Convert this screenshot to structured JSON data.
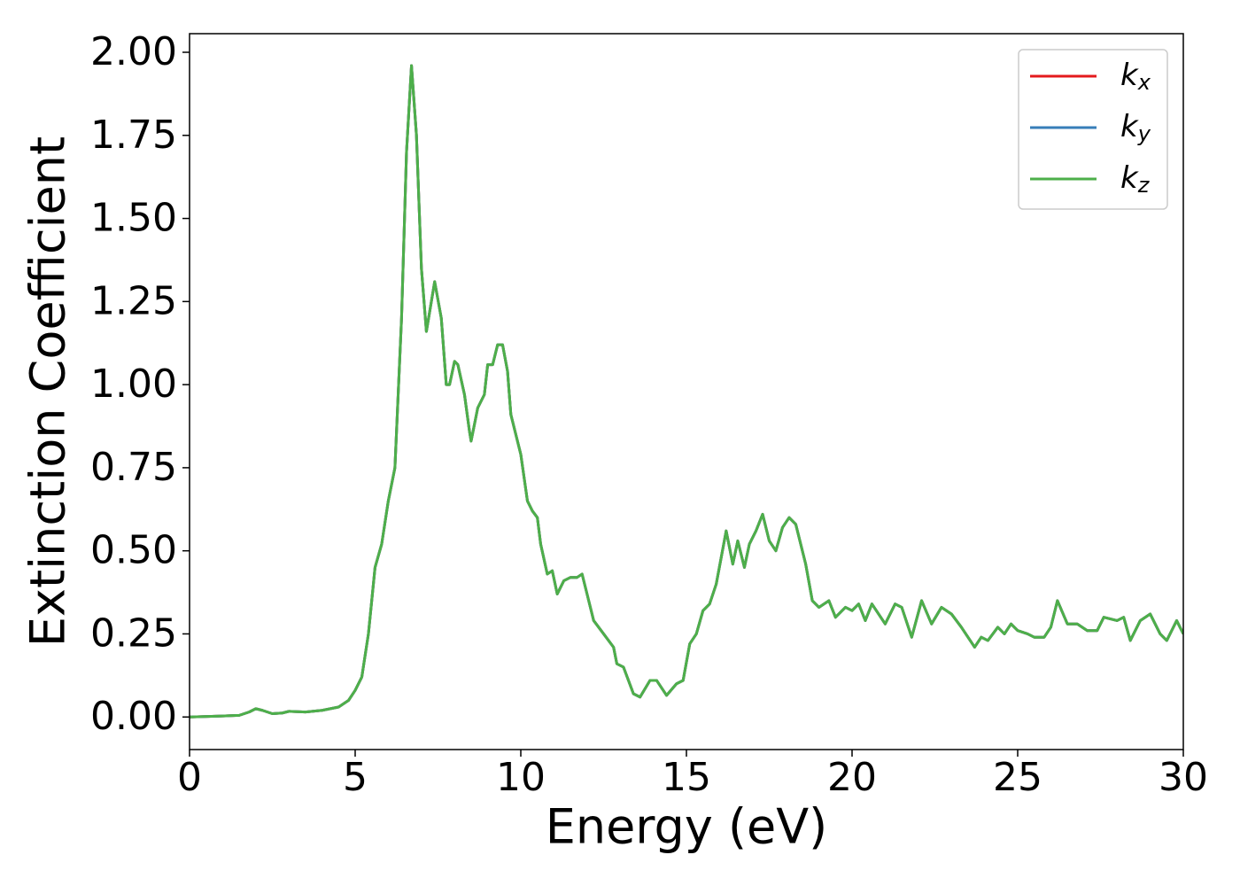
{
  "chart_data": {
    "type": "line",
    "xlabel": "Energy (eV)",
    "ylabel": "Extinction Coefficient",
    "xlim": [
      0,
      30
    ],
    "ylim": [
      -0.098,
      2.056
    ],
    "xticks": [
      0,
      5,
      10,
      15,
      20,
      25,
      30
    ],
    "yticks": [
      {
        "value": 0,
        "label": "0.00"
      },
      {
        "value": 0.25,
        "label": "0.25"
      },
      {
        "value": 0.5,
        "label": "0.50"
      },
      {
        "value": 0.75,
        "label": "0.75"
      },
      {
        "value": 1,
        "label": "1.00"
      },
      {
        "value": 1.25,
        "label": "1.25"
      },
      {
        "value": 1.5,
        "label": "1.50"
      },
      {
        "value": 1.75,
        "label": "1.75"
      },
      {
        "value": 2,
        "label": "2.00"
      }
    ],
    "legend": "upper right",
    "x": [
      0,
      1,
      1.5,
      1.8,
      2.0,
      2.2,
      2.5,
      2.8,
      3.0,
      3.5,
      4.0,
      4.5,
      4.8,
      5.0,
      5.2,
      5.4,
      5.6,
      5.8,
      6.0,
      6.2,
      6.4,
      6.55,
      6.7,
      6.85,
      7.0,
      7.15,
      7.3,
      7.4,
      7.6,
      7.75,
      7.85,
      8.0,
      8.1,
      8.3,
      8.45,
      8.5,
      8.7,
      8.9,
      9.0,
      9.15,
      9.3,
      9.45,
      9.6,
      9.7,
      10.0,
      10.2,
      10.35,
      10.5,
      10.6,
      10.8,
      10.95,
      11.1,
      11.3,
      11.5,
      11.7,
      11.85,
      12.0,
      12.2,
      12.5,
      12.8,
      12.9,
      13.1,
      13.4,
      13.6,
      13.9,
      14.1,
      14.4,
      14.7,
      14.9,
      15.1,
      15.3,
      15.5,
      15.7,
      15.9,
      16.05,
      16.2,
      16.4,
      16.55,
      16.75,
      16.9,
      17.1,
      17.3,
      17.5,
      17.7,
      17.9,
      18.1,
      18.3,
      18.6,
      18.8,
      19.0,
      19.3,
      19.5,
      19.8,
      20.0,
      20.2,
      20.4,
      20.6,
      21.0,
      21.3,
      21.5,
      21.8,
      22.1,
      22.4,
      22.7,
      23.0,
      23.3,
      23.5,
      23.7,
      23.9,
      24.1,
      24.4,
      24.6,
      24.8,
      25.0,
      25.3,
      25.5,
      25.8,
      26.0,
      26.2,
      26.5,
      26.8,
      27.1,
      27.4,
      27.6,
      28.0,
      28.2,
      28.4,
      28.7,
      29.0,
      29.3,
      29.5,
      29.8,
      30.0
    ],
    "series": [
      {
        "name": "kx",
        "color": "#e41a1c",
        "values": [
          0.0,
          0.003,
          0.005,
          0.015,
          0.025,
          0.02,
          0.01,
          0.012,
          0.017,
          0.015,
          0.02,
          0.03,
          0.05,
          0.08,
          0.12,
          0.25,
          0.45,
          0.52,
          0.65,
          0.75,
          1.2,
          1.7,
          1.96,
          1.75,
          1.35,
          1.16,
          1.25,
          1.31,
          1.2,
          1.0,
          1.0,
          1.07,
          1.06,
          0.97,
          0.86,
          0.83,
          0.93,
          0.97,
          1.06,
          1.06,
          1.12,
          1.12,
          1.04,
          0.91,
          0.79,
          0.65,
          0.62,
          0.6,
          0.52,
          0.43,
          0.44,
          0.37,
          0.41,
          0.42,
          0.42,
          0.43,
          0.37,
          0.29,
          0.25,
          0.21,
          0.16,
          0.15,
          0.07,
          0.06,
          0.11,
          0.11,
          0.065,
          0.1,
          0.11,
          0.22,
          0.25,
          0.32,
          0.34,
          0.4,
          0.48,
          0.56,
          0.46,
          0.53,
          0.45,
          0.52,
          0.56,
          0.61,
          0.53,
          0.5,
          0.57,
          0.6,
          0.58,
          0.46,
          0.35,
          0.33,
          0.35,
          0.3,
          0.33,
          0.32,
          0.34,
          0.29,
          0.34,
          0.28,
          0.34,
          0.33,
          0.24,
          0.35,
          0.28,
          0.33,
          0.31,
          0.27,
          0.24,
          0.21,
          0.24,
          0.23,
          0.27,
          0.25,
          0.28,
          0.26,
          0.25,
          0.24,
          0.24,
          0.27,
          0.35,
          0.28,
          0.28,
          0.26,
          0.26,
          0.3,
          0.29,
          0.3,
          0.23,
          0.29,
          0.31,
          0.25,
          0.23,
          0.29,
          0.25
        ]
      },
      {
        "name": "ky",
        "color": "#377eb8",
        "values": [
          0.0,
          0.003,
          0.005,
          0.015,
          0.025,
          0.02,
          0.01,
          0.012,
          0.017,
          0.015,
          0.02,
          0.03,
          0.05,
          0.08,
          0.12,
          0.25,
          0.45,
          0.52,
          0.65,
          0.75,
          1.2,
          1.7,
          1.96,
          1.75,
          1.35,
          1.16,
          1.25,
          1.31,
          1.2,
          1.0,
          1.0,
          1.07,
          1.06,
          0.97,
          0.86,
          0.83,
          0.93,
          0.97,
          1.06,
          1.06,
          1.12,
          1.12,
          1.04,
          0.91,
          0.79,
          0.65,
          0.62,
          0.6,
          0.52,
          0.43,
          0.44,
          0.37,
          0.41,
          0.42,
          0.42,
          0.43,
          0.37,
          0.29,
          0.25,
          0.21,
          0.16,
          0.15,
          0.07,
          0.06,
          0.11,
          0.11,
          0.065,
          0.1,
          0.11,
          0.22,
          0.25,
          0.32,
          0.34,
          0.4,
          0.48,
          0.56,
          0.46,
          0.53,
          0.45,
          0.52,
          0.56,
          0.61,
          0.53,
          0.5,
          0.57,
          0.6,
          0.58,
          0.46,
          0.35,
          0.33,
          0.35,
          0.3,
          0.33,
          0.32,
          0.34,
          0.29,
          0.34,
          0.28,
          0.34,
          0.33,
          0.24,
          0.35,
          0.28,
          0.33,
          0.31,
          0.27,
          0.24,
          0.21,
          0.24,
          0.23,
          0.27,
          0.25,
          0.28,
          0.26,
          0.25,
          0.24,
          0.24,
          0.27,
          0.35,
          0.28,
          0.28,
          0.26,
          0.26,
          0.3,
          0.29,
          0.3,
          0.23,
          0.29,
          0.31,
          0.25,
          0.23,
          0.29,
          0.25
        ]
      },
      {
        "name": "kz",
        "color": "#4daf4a",
        "values": [
          0.0,
          0.003,
          0.005,
          0.015,
          0.025,
          0.02,
          0.01,
          0.012,
          0.017,
          0.015,
          0.02,
          0.03,
          0.05,
          0.08,
          0.12,
          0.25,
          0.45,
          0.52,
          0.65,
          0.75,
          1.2,
          1.7,
          1.96,
          1.75,
          1.35,
          1.16,
          1.25,
          1.31,
          1.2,
          1.0,
          1.0,
          1.07,
          1.06,
          0.97,
          0.86,
          0.83,
          0.93,
          0.97,
          1.06,
          1.06,
          1.12,
          1.12,
          1.04,
          0.91,
          0.79,
          0.65,
          0.62,
          0.6,
          0.52,
          0.43,
          0.44,
          0.37,
          0.41,
          0.42,
          0.42,
          0.43,
          0.37,
          0.29,
          0.25,
          0.21,
          0.16,
          0.15,
          0.07,
          0.06,
          0.11,
          0.11,
          0.065,
          0.1,
          0.11,
          0.22,
          0.25,
          0.32,
          0.34,
          0.4,
          0.48,
          0.56,
          0.46,
          0.53,
          0.45,
          0.52,
          0.56,
          0.61,
          0.53,
          0.5,
          0.57,
          0.6,
          0.58,
          0.46,
          0.35,
          0.33,
          0.35,
          0.3,
          0.33,
          0.32,
          0.34,
          0.29,
          0.34,
          0.28,
          0.34,
          0.33,
          0.24,
          0.35,
          0.28,
          0.33,
          0.31,
          0.27,
          0.24,
          0.21,
          0.24,
          0.23,
          0.27,
          0.25,
          0.28,
          0.26,
          0.25,
          0.24,
          0.24,
          0.27,
          0.35,
          0.28,
          0.28,
          0.26,
          0.26,
          0.3,
          0.29,
          0.3,
          0.23,
          0.29,
          0.31,
          0.25,
          0.23,
          0.29,
          0.25
        ]
      }
    ]
  }
}
